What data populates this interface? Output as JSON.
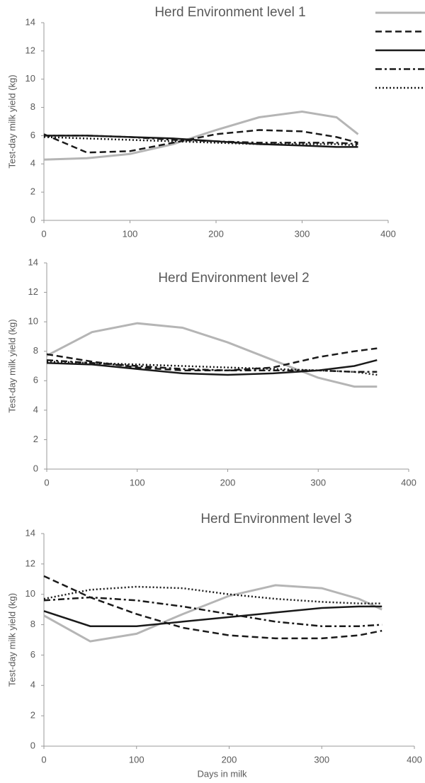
{
  "chart_data": [
    {
      "type": "line",
      "title": "Herd Environment level 1",
      "y_label": "Test-day milk yield (kg)",
      "legend": "upper right",
      "x": [
        0,
        50,
        100,
        150,
        200,
        250,
        300,
        340,
        365
      ],
      "xlim": [
        0,
        400
      ],
      "xticks": [
        0,
        100,
        200,
        300,
        400
      ],
      "ylim": [
        0,
        14
      ],
      "yticks": [
        0,
        2,
        4,
        6,
        8,
        10,
        12,
        14
      ],
      "series": [
        {
          "color": "#b5b5b5",
          "dash": "solid",
          "values": [
            4.3,
            4.4,
            4.7,
            5.4,
            6.4,
            7.3,
            7.7,
            7.3,
            6.1
          ]
        },
        {
          "color": "#1a1a1a",
          "dash": "dashed",
          "values": [
            6.1,
            4.8,
            4.9,
            5.5,
            6.1,
            6.4,
            6.3,
            5.9,
            5.5
          ]
        },
        {
          "color": "#1a1a1a",
          "dash": "solid",
          "values": [
            6.0,
            6.0,
            5.9,
            5.8,
            5.6,
            5.4,
            5.3,
            5.2,
            5.2
          ]
        },
        {
          "color": "#1a1a1a",
          "dash": "dashdot",
          "values": [
            6.0,
            6.0,
            5.9,
            5.7,
            5.6,
            5.5,
            5.5,
            5.5,
            5.4
          ]
        },
        {
          "color": "#1a1a1a",
          "dash": "dotted",
          "values": [
            5.9,
            5.8,
            5.7,
            5.6,
            5.5,
            5.4,
            5.4,
            5.4,
            5.3
          ]
        }
      ]
    },
    {
      "type": "line",
      "title": "Herd Environment level 2",
      "y_label": "Test-day milk yield (kg)",
      "x": [
        0,
        50,
        100,
        150,
        200,
        250,
        300,
        340,
        365
      ],
      "xlim": [
        0,
        400
      ],
      "xticks": [
        0,
        100,
        200,
        300,
        400
      ],
      "ylim": [
        0,
        14
      ],
      "yticks": [
        0,
        2,
        4,
        6,
        8,
        10,
        12,
        14
      ],
      "series": [
        {
          "color": "#b5b5b5",
          "dash": "solid",
          "values": [
            7.7,
            9.3,
            9.9,
            9.6,
            8.6,
            7.4,
            6.2,
            5.6,
            5.6
          ]
        },
        {
          "color": "#1a1a1a",
          "dash": "dashed",
          "values": [
            7.8,
            7.3,
            6.9,
            6.7,
            6.7,
            6.9,
            7.6,
            8.0,
            8.2
          ]
        },
        {
          "color": "#1a1a1a",
          "dash": "solid",
          "values": [
            7.2,
            7.1,
            6.8,
            6.5,
            6.4,
            6.5,
            6.7,
            7.0,
            7.4
          ]
        },
        {
          "color": "#1a1a1a",
          "dash": "dashdot",
          "values": [
            7.4,
            7.2,
            7.0,
            6.8,
            6.7,
            6.7,
            6.7,
            6.6,
            6.6
          ]
        },
        {
          "color": "#1a1a1a",
          "dash": "dotted",
          "values": [
            7.3,
            7.2,
            7.1,
            7.0,
            6.9,
            6.8,
            6.7,
            6.6,
            6.4
          ]
        }
      ]
    },
    {
      "type": "line",
      "title": "Herd Environment level 3",
      "y_label": "Test-day milk yield (kg)",
      "x_label": "Days in milk",
      "x": [
        0,
        50,
        100,
        150,
        200,
        250,
        300,
        340,
        365
      ],
      "xlim": [
        0,
        400
      ],
      "xticks": [
        0,
        100,
        200,
        300,
        400
      ],
      "ylim": [
        0,
        14
      ],
      "yticks": [
        0,
        2,
        4,
        6,
        8,
        10,
        12,
        14
      ],
      "series": [
        {
          "color": "#b5b5b5",
          "dash": "solid",
          "values": [
            8.6,
            6.9,
            7.4,
            8.7,
            9.9,
            10.6,
            10.4,
            9.7,
            9.0
          ]
        },
        {
          "color": "#1a1a1a",
          "dash": "dashed",
          "values": [
            11.2,
            9.8,
            8.7,
            7.8,
            7.3,
            7.1,
            7.1,
            7.3,
            7.6
          ]
        },
        {
          "color": "#1a1a1a",
          "dash": "solid",
          "values": [
            8.9,
            7.9,
            7.9,
            8.2,
            8.5,
            8.8,
            9.1,
            9.2,
            9.2
          ]
        },
        {
          "color": "#1a1a1a",
          "dash": "dashdot",
          "values": [
            9.6,
            9.8,
            9.6,
            9.2,
            8.7,
            8.2,
            7.9,
            7.9,
            8.0
          ]
        },
        {
          "color": "#1a1a1a",
          "dash": "dotted",
          "values": [
            9.7,
            10.3,
            10.5,
            10.4,
            10.0,
            9.7,
            9.5,
            9.4,
            9.4
          ]
        }
      ]
    }
  ]
}
